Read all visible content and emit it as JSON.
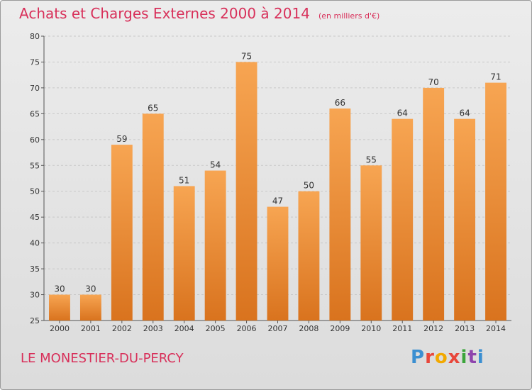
{
  "header": {
    "title": "Achats et Charges Externes 2000 à 2014",
    "subtitle": "(en milliers d'€)"
  },
  "footer": {
    "commune": "LE MONESTIER-DU-PERCY",
    "logo_text": "Proxiti",
    "logo_colors": [
      "#3b8fd1",
      "#e8473b",
      "#f2a900",
      "#e8473b",
      "#3ba53b",
      "#8e44ad",
      "#3b8fd1"
    ]
  },
  "colors": {
    "bar_top": "#f7a552",
    "bar_bottom": "#d9731e",
    "accent": "#d8305a",
    "grid": "#c8c8c8",
    "axis": "#555555"
  },
  "chart_data": {
    "type": "bar",
    "categories": [
      "2000",
      "2001",
      "2002",
      "2003",
      "2004",
      "2005",
      "2006",
      "2007",
      "2008",
      "2009",
      "2010",
      "2011",
      "2012",
      "2013",
      "2014"
    ],
    "values": [
      30,
      30,
      59,
      65,
      51,
      54,
      75,
      47,
      50,
      66,
      55,
      64,
      70,
      64,
      71
    ],
    "title": "Achats et Charges Externes 2000 à 2014",
    "ylim": [
      25,
      80
    ],
    "yticks": [
      25,
      30,
      35,
      40,
      45,
      50,
      55,
      60,
      65,
      70,
      75,
      80
    ],
    "grid": true,
    "data_labels": true
  }
}
